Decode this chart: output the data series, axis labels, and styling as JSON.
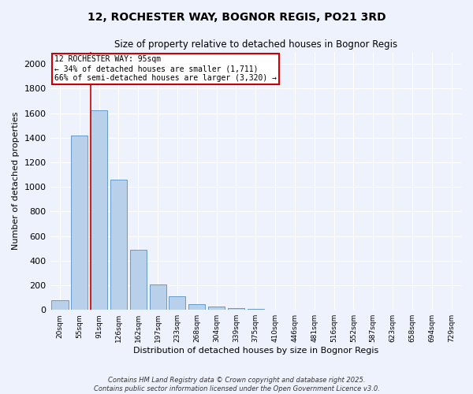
{
  "title": "12, ROCHESTER WAY, BOGNOR REGIS, PO21 3RD",
  "subtitle": "Size of property relative to detached houses in Bognor Regis",
  "xlabel": "Distribution of detached houses by size in Bognor Regis",
  "ylabel": "Number of detached properties",
  "bar_labels": [
    "20sqm",
    "55sqm",
    "91sqm",
    "126sqm",
    "162sqm",
    "197sqm",
    "233sqm",
    "268sqm",
    "304sqm",
    "339sqm",
    "375sqm",
    "410sqm",
    "446sqm",
    "481sqm",
    "516sqm",
    "552sqm",
    "587sqm",
    "623sqm",
    "658sqm",
    "694sqm",
    "729sqm"
  ],
  "bar_values": [
    80,
    1420,
    1620,
    1060,
    490,
    205,
    108,
    45,
    25,
    12,
    8,
    0,
    0,
    0,
    0,
    0,
    0,
    0,
    0,
    0,
    0
  ],
  "bar_color": "#b8d0ea",
  "bar_edge_color": "#6699cc",
  "subject_bin_index": 2,
  "subject_line_color": "#cc0000",
  "annotation_line1": "12 ROCHESTER WAY: 95sqm",
  "annotation_line2": "← 34% of detached houses are smaller (1,711)",
  "annotation_line3": "66% of semi-detached houses are larger (3,320) →",
  "annotation_box_color": "#ffffff",
  "annotation_box_edge": "#cc0000",
  "ylim": [
    0,
    2100
  ],
  "yticks": [
    0,
    200,
    400,
    600,
    800,
    1000,
    1200,
    1400,
    1600,
    1800,
    2000
  ],
  "background_color": "#eef2fc",
  "grid_color": "#ffffff",
  "footer_line1": "Contains HM Land Registry data © Crown copyright and database right 2025.",
  "footer_line2": "Contains public sector information licensed under the Open Government Licence v3.0."
}
